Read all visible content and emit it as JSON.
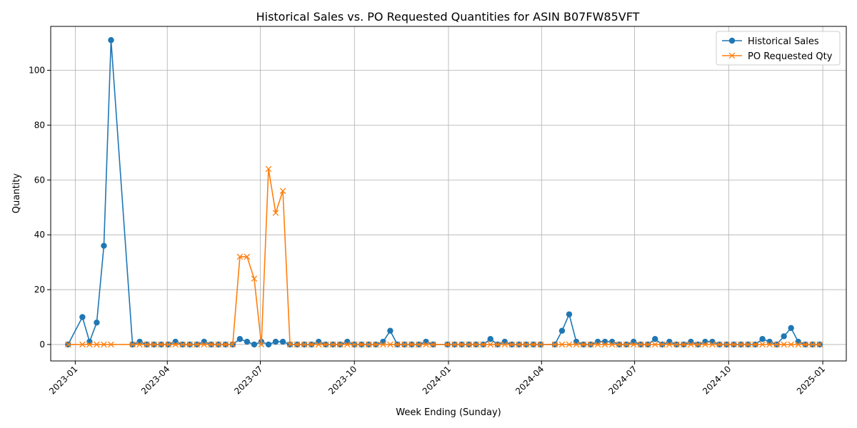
{
  "chart_data": {
    "type": "line",
    "title": "Historical Sales vs. PO Requested Quantities for ASIN B07FW85VFT",
    "xlabel": "Week Ending (Sunday)",
    "ylabel": "Quantity",
    "xlim": [
      "2022-12-08",
      "2025-01-24"
    ],
    "ylim": [
      -6,
      116
    ],
    "x_ticks": [
      "2023-01-01",
      "2023-04-01",
      "2023-07-01",
      "2023-10-01",
      "2024-01-01",
      "2024-04-01",
      "2024-07-01",
      "2024-10-01",
      "2025-01-01"
    ],
    "x_tick_labels": [
      "2023-01",
      "2023-04",
      "2023-07",
      "2023-10",
      "2024-01",
      "2024-04",
      "2024-07",
      "2024-10",
      "2025-01"
    ],
    "y_ticks": [
      0,
      20,
      40,
      60,
      80,
      100
    ],
    "grid": true,
    "legend_position": "top-right",
    "series": [
      {
        "name": "Historical Sales",
        "color": "#1f77b4",
        "marker": "circle",
        "points": [
          [
            "2022-12-25",
            0
          ],
          [
            "2023-01-08",
            10
          ],
          [
            "2023-01-15",
            1
          ],
          [
            "2023-01-22",
            8
          ],
          [
            "2023-01-29",
            36
          ],
          [
            "2023-02-05",
            111
          ],
          [
            "2023-02-26",
            0
          ],
          [
            "2023-03-05",
            1
          ],
          [
            "2023-03-12",
            0
          ],
          [
            "2023-03-19",
            0
          ],
          [
            "2023-03-26",
            0
          ],
          [
            "2023-04-02",
            0
          ],
          [
            "2023-04-09",
            1
          ],
          [
            "2023-04-16",
            0
          ],
          [
            "2023-04-23",
            0
          ],
          [
            "2023-04-30",
            0
          ],
          [
            "2023-05-07",
            1
          ],
          [
            "2023-05-14",
            0
          ],
          [
            "2023-05-21",
            0
          ],
          [
            "2023-05-28",
            0
          ],
          [
            "2023-06-04",
            0
          ],
          [
            "2023-06-11",
            2
          ],
          [
            "2023-06-18",
            1
          ],
          [
            "2023-06-25",
            0
          ],
          [
            "2023-07-02",
            1
          ],
          [
            "2023-07-09",
            0
          ],
          [
            "2023-07-16",
            1
          ],
          [
            "2023-07-23",
            1
          ],
          [
            "2023-07-30",
            0
          ],
          [
            "2023-08-06",
            0
          ],
          [
            "2023-08-13",
            0
          ],
          [
            "2023-08-20",
            0
          ],
          [
            "2023-08-27",
            1
          ],
          [
            "2023-09-03",
            0
          ],
          [
            "2023-09-10",
            0
          ],
          [
            "2023-09-17",
            0
          ],
          [
            "2023-09-24",
            1
          ],
          [
            "2023-10-01",
            0
          ],
          [
            "2023-10-08",
            0
          ],
          [
            "2023-10-15",
            0
          ],
          [
            "2023-10-22",
            0
          ],
          [
            "2023-10-29",
            1
          ],
          [
            "2023-11-05",
            5
          ],
          [
            "2023-11-12",
            0
          ],
          [
            "2023-11-19",
            0
          ],
          [
            "2023-11-26",
            0
          ],
          [
            "2023-12-03",
            0
          ],
          [
            "2023-12-10",
            1
          ],
          [
            "2023-12-17",
            0
          ],
          [
            "2023-12-31",
            0
          ],
          [
            "2024-01-07",
            0
          ],
          [
            "2024-01-14",
            0
          ],
          [
            "2024-01-21",
            0
          ],
          [
            "2024-01-28",
            0
          ],
          [
            "2024-02-04",
            0
          ],
          [
            "2024-02-11",
            2
          ],
          [
            "2024-02-18",
            0
          ],
          [
            "2024-02-25",
            1
          ],
          [
            "2024-03-03",
            0
          ],
          [
            "2024-03-10",
            0
          ],
          [
            "2024-03-17",
            0
          ],
          [
            "2024-03-24",
            0
          ],
          [
            "2024-03-31",
            0
          ],
          [
            "2024-04-14",
            0
          ],
          [
            "2024-04-21",
            5
          ],
          [
            "2024-04-28",
            11
          ],
          [
            "2024-05-05",
            1
          ],
          [
            "2024-05-12",
            0
          ],
          [
            "2024-05-19",
            0
          ],
          [
            "2024-05-26",
            1
          ],
          [
            "2024-06-02",
            1
          ],
          [
            "2024-06-09",
            1
          ],
          [
            "2024-06-16",
            0
          ],
          [
            "2024-06-23",
            0
          ],
          [
            "2024-06-30",
            1
          ],
          [
            "2024-07-07",
            0
          ],
          [
            "2024-07-14",
            0
          ],
          [
            "2024-07-21",
            2
          ],
          [
            "2024-07-28",
            0
          ],
          [
            "2024-08-04",
            1
          ],
          [
            "2024-08-11",
            0
          ],
          [
            "2024-08-18",
            0
          ],
          [
            "2024-08-25",
            1
          ],
          [
            "2024-09-01",
            0
          ],
          [
            "2024-09-08",
            1
          ],
          [
            "2024-09-15",
            1
          ],
          [
            "2024-09-22",
            0
          ],
          [
            "2024-09-29",
            0
          ],
          [
            "2024-10-06",
            0
          ],
          [
            "2024-10-13",
            0
          ],
          [
            "2024-10-20",
            0
          ],
          [
            "2024-10-27",
            0
          ],
          [
            "2024-11-03",
            2
          ],
          [
            "2024-11-10",
            1
          ],
          [
            "2024-11-17",
            0
          ],
          [
            "2024-11-24",
            3
          ],
          [
            "2024-12-01",
            6
          ],
          [
            "2024-12-08",
            1
          ],
          [
            "2024-12-15",
            0
          ],
          [
            "2024-12-22",
            0
          ],
          [
            "2024-12-29",
            0
          ]
        ]
      },
      {
        "name": "PO Requested Qty",
        "color": "#ff7f0e",
        "marker": "x",
        "points": [
          [
            "2022-12-25",
            0
          ],
          [
            "2023-01-08",
            0
          ],
          [
            "2023-01-15",
            0
          ],
          [
            "2023-01-22",
            0
          ],
          [
            "2023-01-29",
            0
          ],
          [
            "2023-02-05",
            0
          ],
          [
            "2023-02-26",
            0
          ],
          [
            "2023-03-05",
            0
          ],
          [
            "2023-03-12",
            0
          ],
          [
            "2023-03-19",
            0
          ],
          [
            "2023-03-26",
            0
          ],
          [
            "2023-04-02",
            0
          ],
          [
            "2023-04-09",
            0
          ],
          [
            "2023-04-16",
            0
          ],
          [
            "2023-04-23",
            0
          ],
          [
            "2023-04-30",
            0
          ],
          [
            "2023-05-07",
            0
          ],
          [
            "2023-05-14",
            0
          ],
          [
            "2023-05-21",
            0
          ],
          [
            "2023-05-28",
            0
          ],
          [
            "2023-06-04",
            0
          ],
          [
            "2023-06-11",
            32
          ],
          [
            "2023-06-18",
            32
          ],
          [
            "2023-06-25",
            24
          ],
          [
            "2023-07-02",
            0
          ],
          [
            "2023-07-09",
            64
          ],
          [
            "2023-07-16",
            48
          ],
          [
            "2023-07-23",
            56
          ],
          [
            "2023-07-30",
            0
          ],
          [
            "2023-08-06",
            0
          ],
          [
            "2023-08-13",
            0
          ],
          [
            "2023-08-20",
            0
          ],
          [
            "2023-08-27",
            0
          ],
          [
            "2023-09-03",
            0
          ],
          [
            "2023-09-10",
            0
          ],
          [
            "2023-09-17",
            0
          ],
          [
            "2023-09-24",
            0
          ],
          [
            "2023-10-01",
            0
          ],
          [
            "2023-10-08",
            0
          ],
          [
            "2023-10-15",
            0
          ],
          [
            "2023-10-22",
            0
          ],
          [
            "2023-10-29",
            0
          ],
          [
            "2023-11-05",
            0
          ],
          [
            "2023-11-12",
            0
          ],
          [
            "2023-11-19",
            0
          ],
          [
            "2023-11-26",
            0
          ],
          [
            "2023-12-03",
            0
          ],
          [
            "2023-12-10",
            0
          ],
          [
            "2023-12-17",
            0
          ],
          [
            "2023-12-31",
            0
          ],
          [
            "2024-01-07",
            0
          ],
          [
            "2024-01-14",
            0
          ],
          [
            "2024-01-21",
            0
          ],
          [
            "2024-01-28",
            0
          ],
          [
            "2024-02-04",
            0
          ],
          [
            "2024-02-11",
            0
          ],
          [
            "2024-02-18",
            0
          ],
          [
            "2024-02-25",
            0
          ],
          [
            "2024-03-03",
            0
          ],
          [
            "2024-03-10",
            0
          ],
          [
            "2024-03-17",
            0
          ],
          [
            "2024-03-24",
            0
          ],
          [
            "2024-03-31",
            0
          ],
          [
            "2024-04-14",
            0
          ],
          [
            "2024-04-21",
            0
          ],
          [
            "2024-04-28",
            0
          ],
          [
            "2024-05-05",
            0
          ],
          [
            "2024-05-12",
            0
          ],
          [
            "2024-05-19",
            0
          ],
          [
            "2024-05-26",
            0
          ],
          [
            "2024-06-02",
            0
          ],
          [
            "2024-06-09",
            0
          ],
          [
            "2024-06-16",
            0
          ],
          [
            "2024-06-23",
            0
          ],
          [
            "2024-06-30",
            0
          ],
          [
            "2024-07-07",
            0
          ],
          [
            "2024-07-14",
            0
          ],
          [
            "2024-07-21",
            0
          ],
          [
            "2024-07-28",
            0
          ],
          [
            "2024-08-04",
            0
          ],
          [
            "2024-08-11",
            0
          ],
          [
            "2024-08-18",
            0
          ],
          [
            "2024-08-25",
            0
          ],
          [
            "2024-09-01",
            0
          ],
          [
            "2024-09-08",
            0
          ],
          [
            "2024-09-15",
            0
          ],
          [
            "2024-09-22",
            0
          ],
          [
            "2024-09-29",
            0
          ],
          [
            "2024-10-06",
            0
          ],
          [
            "2024-10-13",
            0
          ],
          [
            "2024-10-20",
            0
          ],
          [
            "2024-10-27",
            0
          ],
          [
            "2024-11-03",
            0
          ],
          [
            "2024-11-10",
            0
          ],
          [
            "2024-11-17",
            0
          ],
          [
            "2024-11-24",
            0
          ],
          [
            "2024-12-01",
            0
          ],
          [
            "2024-12-08",
            0
          ],
          [
            "2024-12-15",
            0
          ],
          [
            "2024-12-22",
            0
          ],
          [
            "2024-12-29",
            0
          ]
        ]
      }
    ]
  }
}
